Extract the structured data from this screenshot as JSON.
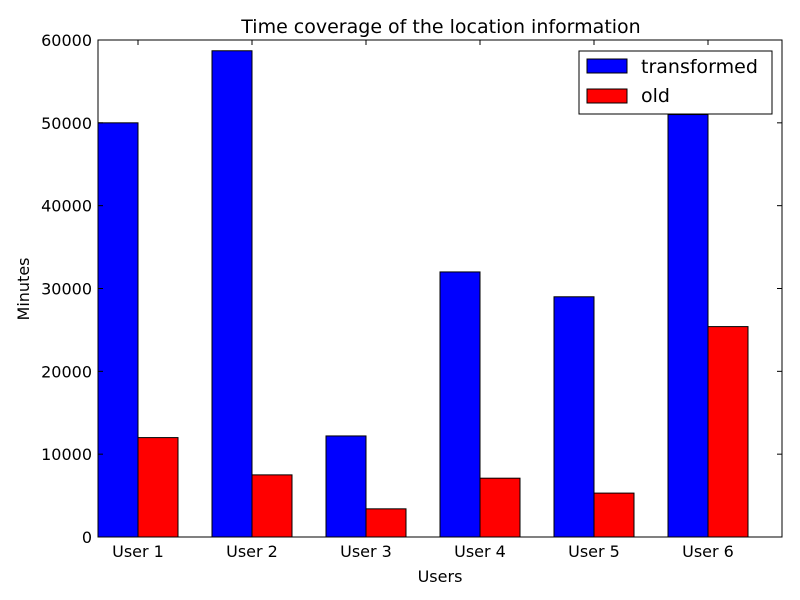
{
  "chart_data": {
    "type": "bar",
    "title": "Time coverage of the location information",
    "xlabel": "Users",
    "ylabel": "Minutes",
    "categories": [
      "User 1",
      "User 2",
      "User 3",
      "User 4",
      "User 5",
      "User 6"
    ],
    "series": [
      {
        "name": "transformed",
        "color": "#0000ff",
        "values": [
          50000,
          58700,
          12200,
          32000,
          29000,
          51000
        ]
      },
      {
        "name": "old",
        "color": "#ff0000",
        "values": [
          12000,
          7500,
          3400,
          7100,
          5300,
          25400
        ]
      }
    ],
    "ylim": [
      0,
      60000
    ],
    "yticks": [
      "0",
      "10000",
      "20000",
      "30000",
      "40000",
      "50000",
      "60000"
    ],
    "grid": false,
    "legend_position": "top-right"
  }
}
